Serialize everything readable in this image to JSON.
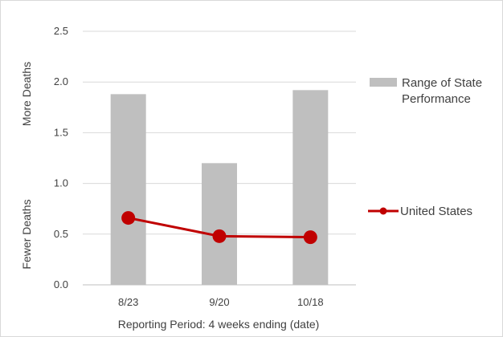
{
  "chart_data": {
    "type": "bar",
    "categories": [
      "8/23",
      "9/20",
      "10/18"
    ],
    "ylim": [
      0,
      2.5
    ],
    "y_ticks": [
      "0.0",
      "0.5",
      "1.0",
      "1.5",
      "2.0",
      "2.5"
    ],
    "y_tick_values": [
      0,
      0.5,
      1.0,
      1.5,
      2.0,
      2.5
    ],
    "xlabel": "Reporting Period: 4 weeks ending (date)",
    "ylabel_top": "More Deaths",
    "ylabel_bottom": "Fewer Deaths",
    "grid": true,
    "legend_position": "right",
    "series": [
      {
        "name_lines": [
          "Range of State",
          "Performance"
        ],
        "kind": "bar",
        "color": "#bfbfbf",
        "values": [
          1.88,
          1.2,
          1.92
        ]
      },
      {
        "name": "United States",
        "kind": "line",
        "color": "#c00000",
        "values": [
          0.66,
          0.48,
          0.47
        ]
      }
    ]
  }
}
